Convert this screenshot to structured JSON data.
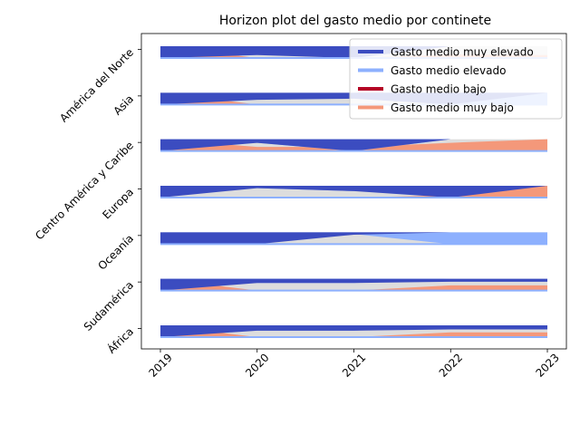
{
  "chart_data": {
    "type": "area",
    "subtype": "horizon",
    "title": "Horizon plot del gasto medio por continete",
    "xlabel": "",
    "ylabel": "",
    "x": [
      "2019",
      "2020",
      "2021",
      "2022",
      "2023"
    ],
    "rows": [
      {
        "label": "África",
        "muy_elevado": [
          1.0,
          0.45,
          0.45,
          0.35,
          0.35
        ],
        "elevado": [
          0.0,
          0.45,
          0.45,
          0.0,
          0.0
        ],
        "bajo": [
          0.0,
          0.0,
          0.0,
          0.0,
          0.0
        ],
        "muy_bajo": [
          1.0,
          0.0,
          0.0,
          0.4,
          0.4
        ]
      },
      {
        "label": "Sudamérica",
        "muy_elevado": [
          1.0,
          0.35,
          0.35,
          0.25,
          0.25
        ],
        "elevado": [
          0.0,
          0.35,
          0.35,
          0.0,
          0.0
        ],
        "bajo": [
          0.0,
          0.0,
          0.0,
          0.0,
          0.0
        ],
        "muy_bajo": [
          1.0,
          0.0,
          0.0,
          0.45,
          0.45
        ]
      },
      {
        "label": "Oceanía",
        "muy_elevado": [
          1.0,
          1.0,
          0.2,
          0.0,
          0.0
        ],
        "elevado": [
          0.0,
          0.35,
          0.15,
          1.0,
          1.0
        ],
        "bajo": [
          0.0,
          0.0,
          0.0,
          0.0,
          0.0
        ],
        "muy_bajo": [
          1.0,
          0.0,
          0.0,
          0.0,
          0.9
        ]
      },
      {
        "label": "Europa",
        "muy_elevado": [
          1.0,
          0.2,
          0.45,
          1.0,
          0.0
        ],
        "elevado": [
          0.0,
          0.2,
          0.45,
          0.0,
          0.0
        ],
        "bajo": [
          0.0,
          0.0,
          0.0,
          0.0,
          0.0
        ],
        "muy_bajo": [
          0.0,
          0.0,
          0.0,
          0.2,
          1.0
        ]
      },
      {
        "label": "Centro América y Caribe",
        "muy_elevado": [
          1.0,
          0.3,
          1.0,
          0.0,
          0.0
        ],
        "elevado": [
          0.0,
          0.3,
          1.0,
          0.0,
          0.0
        ],
        "bajo": [
          0.0,
          0.0,
          0.0,
          0.0,
          0.0
        ],
        "muy_bajo": [
          1.0,
          0.35,
          0.35,
          0.7,
          1.0
        ]
      },
      {
        "label": "Asia",
        "muy_elevado": [
          1.0,
          0.6,
          0.5,
          1.0,
          0.0
        ],
        "elevado": [
          0.0,
          0.0,
          0.0,
          1.0,
          1.0
        ],
        "bajo": [
          0.0,
          0.0,
          0.0,
          0.0,
          0.0
        ],
        "muy_bajo": [
          1.0,
          0.0,
          0.0,
          0.0,
          0.0
        ]
      },
      {
        "label": "América del Norte",
        "muy_elevado": [
          1.0,
          0.75,
          1.0,
          0.0,
          0.0
        ],
        "elevado": [
          0.0,
          0.0,
          0.0,
          0.0,
          0.0
        ],
        "bajo": [
          0.0,
          0.0,
          0.0,
          0.0,
          0.0
        ],
        "muy_bajo": [
          1.0,
          0.0,
          0.0,
          0.3,
          0.25
        ]
      }
    ],
    "legend": {
      "placement": "top-right",
      "entries": [
        {
          "label": "Gasto medio muy elevado",
          "color": "#3b4cc0"
        },
        {
          "label": "Gasto medio elevado",
          "color": "#8db0fe"
        },
        {
          "label": "Gasto medio bajo",
          "color": "#b40426"
        },
        {
          "label": "Gasto medio muy bajo",
          "color": "#f4987a"
        }
      ]
    },
    "colors": {
      "muy_elevado": "#3b4cc0",
      "elevado": "#8db0fe",
      "bajo": "#b40426",
      "muy_bajo": "#f4987a",
      "neutral": "#dddddd"
    },
    "grid": false
  }
}
